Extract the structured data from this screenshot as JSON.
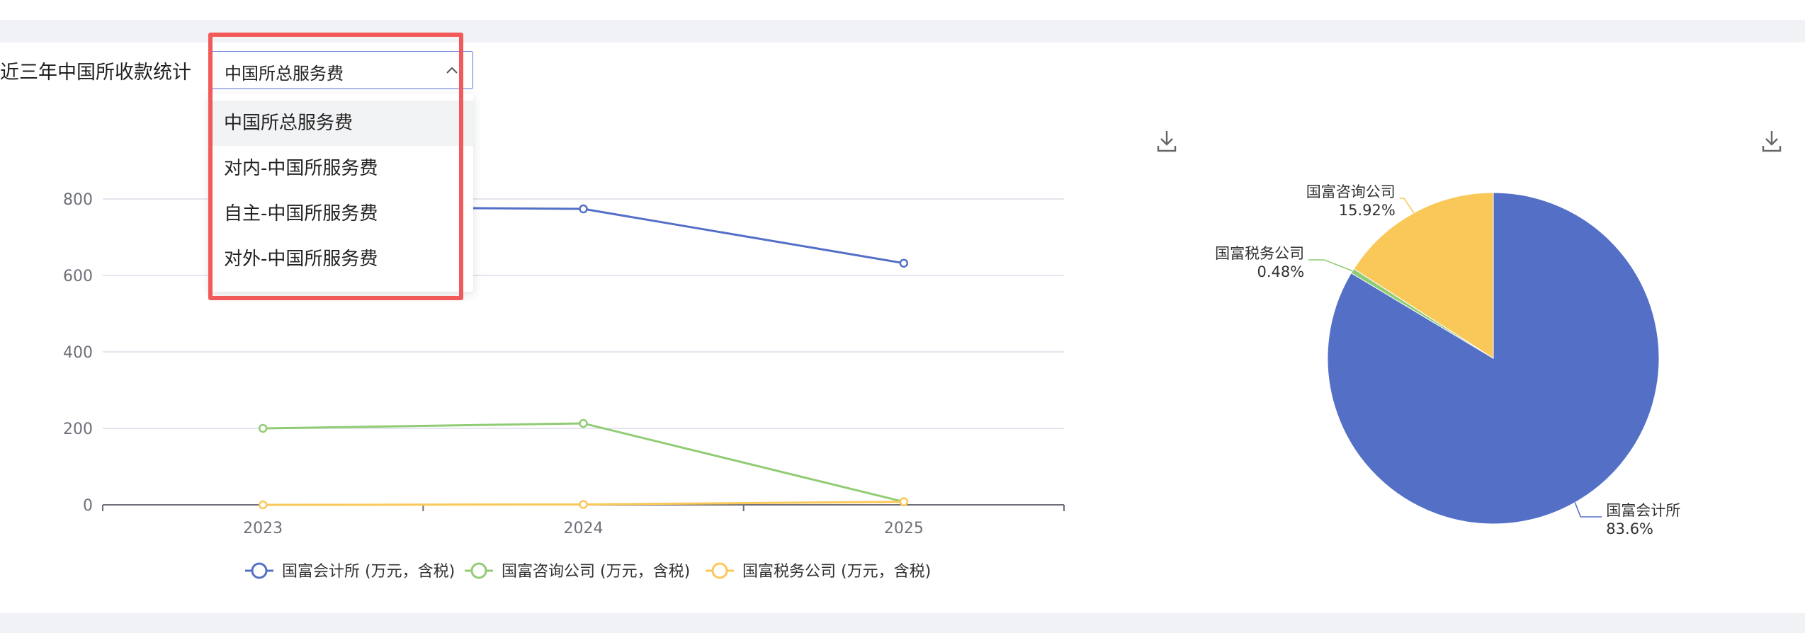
{
  "header": {
    "title": "近三年中国所收款统计"
  },
  "filter": {
    "selected": "中国所总服务费",
    "options": [
      "中国所总服务费",
      "对内-中国所服务费",
      "自主-中国所服务费",
      "对外-中国所服务费"
    ]
  },
  "icons": {
    "download": "download-icon",
    "chevron": "chevron-up-icon"
  },
  "chart_data": [
    {
      "type": "line",
      "x": [
        "2023",
        "2024",
        "2025"
      ],
      "ylim": [
        0,
        800
      ],
      "yticks": [
        0,
        200,
        400,
        600,
        800
      ],
      "grid": true,
      "legend": "bottom",
      "series": [
        {
          "name": "国富会计所 (万元，含税)",
          "color": "#5470c6",
          "values": [
            780,
            774,
            632
          ]
        },
        {
          "name": "国富咨询公司 (万元，含税)",
          "color": "#91cc75",
          "values": [
            200,
            213,
            8
          ]
        },
        {
          "name": "国富税务公司 (万元，含税)",
          "color": "#fac858",
          "values": [
            0,
            1,
            8
          ]
        }
      ]
    },
    {
      "type": "pie",
      "slices": [
        {
          "label": "国富会计所",
          "value": 83.6,
          "display": "83.6%",
          "color": "#5470c6"
        },
        {
          "label": "国富税务公司",
          "value": 0.48,
          "display": "0.48%",
          "color": "#91cc75"
        },
        {
          "label": "国富咨询公司",
          "value": 15.92,
          "display": "15.92%",
          "color": "#fac858"
        }
      ]
    }
  ]
}
